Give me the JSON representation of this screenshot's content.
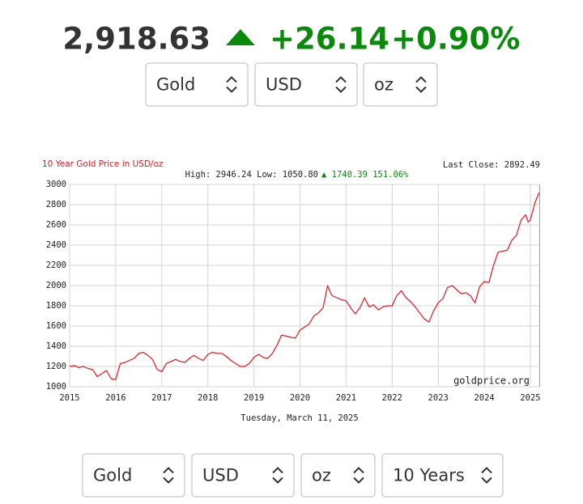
{
  "header": {
    "price": "2,918.63",
    "change": "+26.14",
    "percent": "+0.90%"
  },
  "top_selects": [
    "Gold",
    "USD",
    "oz"
  ],
  "bottom_selects": [
    "Gold",
    "USD",
    "oz",
    "10 Years"
  ],
  "chart_data": {
    "type": "line",
    "title": "10 Year Gold Price in USD/oz",
    "last_close": "Last Close: 2892.49",
    "stats": "High: 2946.24 Low: 1050.80",
    "stats_change": "▲ 1740.39 151.06%",
    "watermark": "goldprice.org",
    "x_label": "Tuesday, March 11, 2025",
    "color": "#e8141b",
    "grid": true,
    "x": [
      2015.0,
      2015.1,
      2015.2,
      2015.3,
      2015.4,
      2015.5,
      2015.6,
      2015.7,
      2015.8,
      2015.9,
      2016.0,
      2016.1,
      2016.2,
      2016.3,
      2016.4,
      2016.5,
      2016.6,
      2016.7,
      2016.8,
      2016.9,
      2017.0,
      2017.1,
      2017.2,
      2017.3,
      2017.4,
      2017.5,
      2017.6,
      2017.7,
      2017.8,
      2017.9,
      2018.0,
      2018.1,
      2018.2,
      2018.3,
      2018.4,
      2018.5,
      2018.6,
      2018.7,
      2018.8,
      2018.9,
      2019.0,
      2019.1,
      2019.2,
      2019.3,
      2019.4,
      2019.5,
      2019.6,
      2019.7,
      2019.8,
      2019.9,
      2020.0,
      2020.1,
      2020.2,
      2020.3,
      2020.4,
      2020.5,
      2020.6,
      2020.65,
      2020.7,
      2020.8,
      2020.9,
      2021.0,
      2021.1,
      2021.2,
      2021.3,
      2021.4,
      2021.5,
      2021.6,
      2021.7,
      2021.8,
      2021.9,
      2022.0,
      2022.1,
      2022.2,
      2022.3,
      2022.4,
      2022.5,
      2022.6,
      2022.7,
      2022.8,
      2022.9,
      2023.0,
      2023.1,
      2023.2,
      2023.3,
      2023.4,
      2023.5,
      2023.6,
      2023.7,
      2023.8,
      2023.9,
      2024.0,
      2024.1,
      2024.2,
      2024.3,
      2024.4,
      2024.5,
      2024.6,
      2024.7,
      2024.8,
      2024.9,
      2024.95,
      2025.0,
      2025.1,
      2025.19
    ],
    "values": [
      1200,
      1210,
      1190,
      1200,
      1180,
      1170,
      1100,
      1130,
      1160,
      1080,
      1070,
      1230,
      1240,
      1260,
      1280,
      1330,
      1340,
      1310,
      1270,
      1170,
      1150,
      1230,
      1250,
      1270,
      1250,
      1240,
      1280,
      1310,
      1280,
      1260,
      1320,
      1340,
      1330,
      1330,
      1300,
      1260,
      1230,
      1200,
      1200,
      1230,
      1290,
      1320,
      1290,
      1280,
      1330,
      1410,
      1510,
      1500,
      1490,
      1480,
      1560,
      1590,
      1620,
      1700,
      1730,
      1780,
      2000,
      1940,
      1900,
      1880,
      1860,
      1850,
      1780,
      1720,
      1780,
      1880,
      1790,
      1810,
      1760,
      1790,
      1800,
      1800,
      1900,
      1950,
      1880,
      1840,
      1790,
      1730,
      1670,
      1640,
      1750,
      1830,
      1870,
      1980,
      2000,
      1960,
      1920,
      1930,
      1900,
      1830,
      1990,
      2040,
      2030,
      2200,
      2330,
      2340,
      2350,
      2450,
      2500,
      2650,
      2700,
      2630,
      2650,
      2820,
      2920
    ],
    "xlim": [
      2015,
      2025.2
    ],
    "ylim": [
      1000,
      3000
    ],
    "xticks": [
      2015,
      2016,
      2017,
      2018,
      2019,
      2020,
      2021,
      2022,
      2023,
      2024,
      2025
    ],
    "yticks": [
      1000,
      1200,
      1400,
      1600,
      1800,
      2000,
      2200,
      2400,
      2600,
      2800,
      3000
    ]
  }
}
